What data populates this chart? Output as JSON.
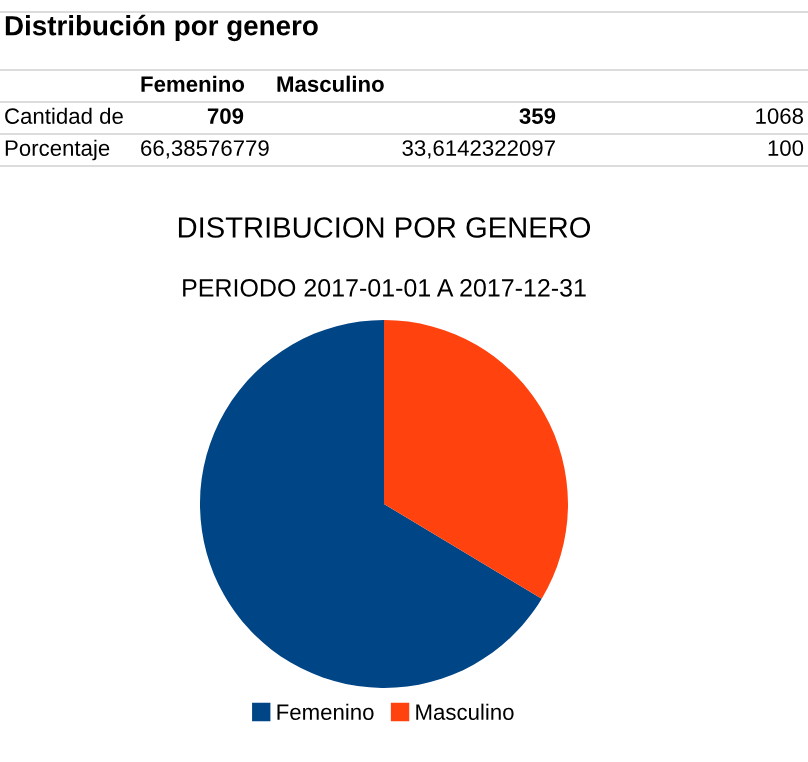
{
  "chart_data": {
    "type": "pie",
    "title": "DISTRIBUCION POR GENERO",
    "subtitle": "PERIODO 2017-01-01 A 2017-12-31",
    "categories": [
      "Femenino",
      "Masculino"
    ],
    "values": [
      66.38576779,
      33.6142322097
    ],
    "colors": [
      "#004586",
      "#ff420e"
    ],
    "legend": "bottom",
    "annotations": [
      "Distribución por genero",
      "Cantidad de",
      "709",
      "359",
      "1068",
      "Porcentaje",
      "66,38576779",
      "33,6142322097",
      "100"
    ]
  }
}
